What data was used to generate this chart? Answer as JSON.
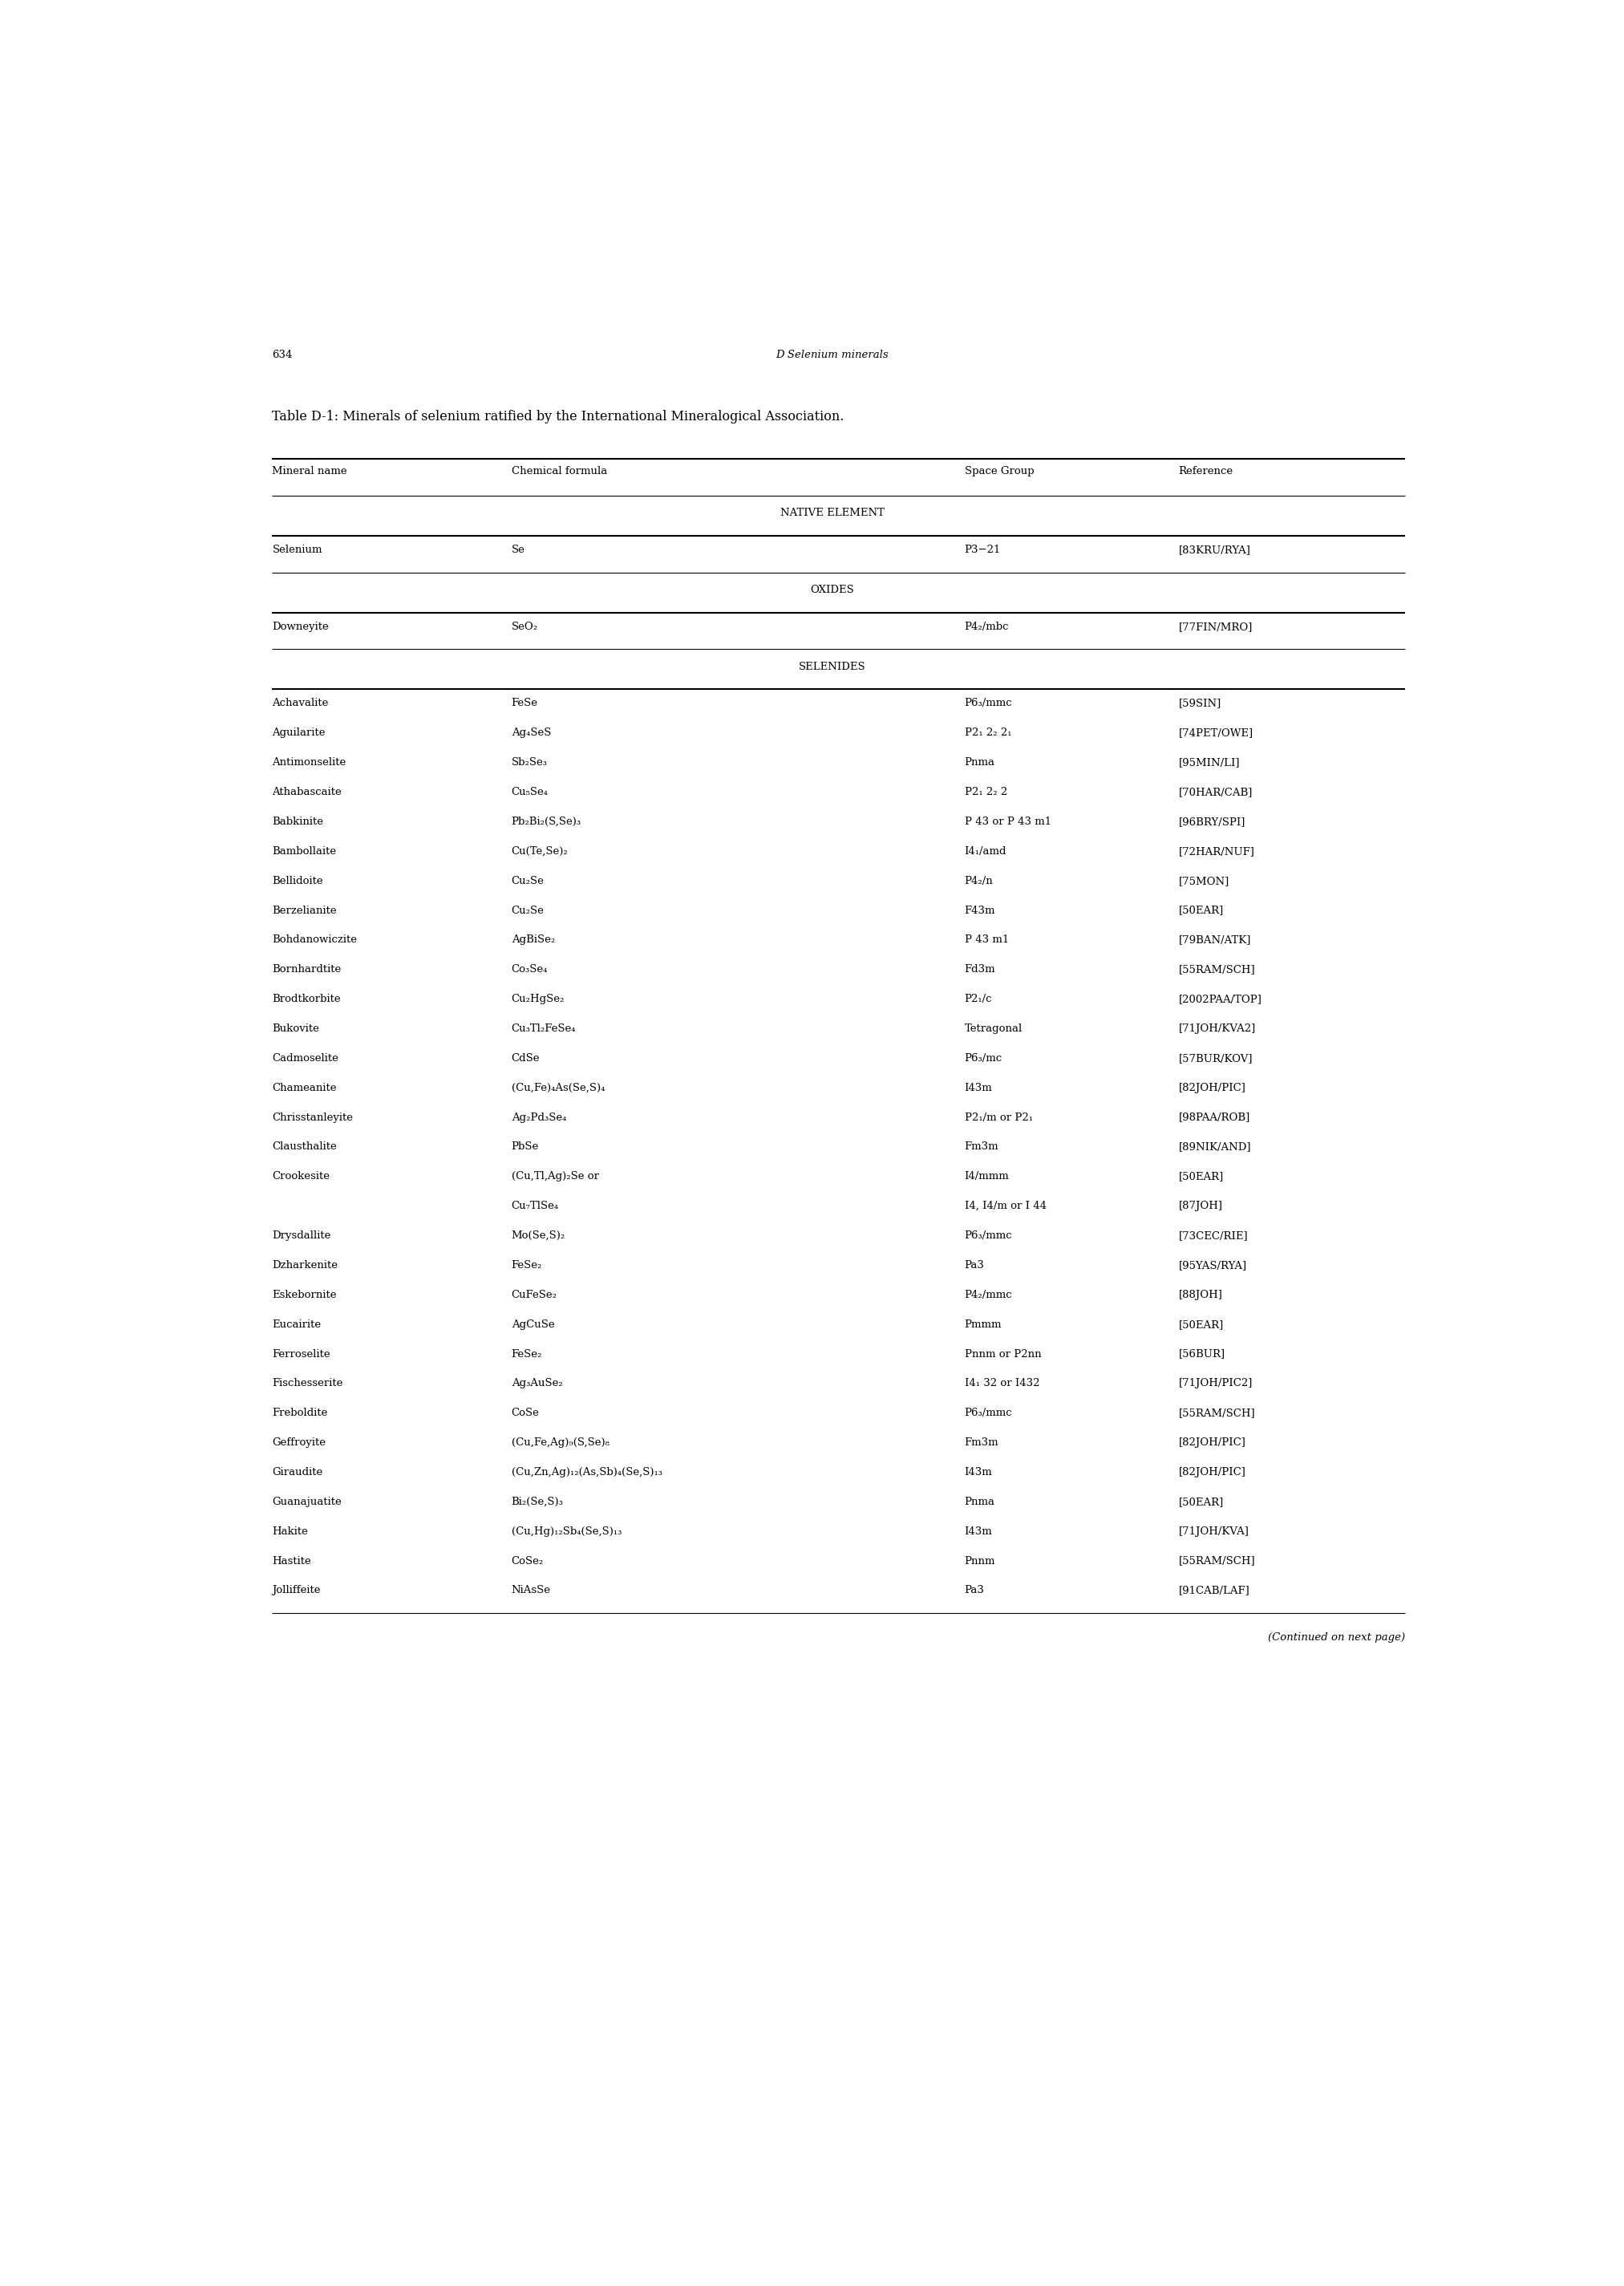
{
  "page_number": "634",
  "page_header": "D Selenium minerals",
  "table_title": "Table D-1: Minerals of selenium ratified by the International Mineralogical Association.",
  "col_headers": [
    "Mineral name",
    "Chemical formula",
    "Space Group",
    "Reference"
  ],
  "sections": [
    {
      "section_name": "NATIVE ELEMENT",
      "rows": [
        [
          "Selenium",
          "Se",
          "P3−21",
          "[83KRU/RYA]"
        ]
      ]
    },
    {
      "section_name": "OXIDES",
      "rows": [
        [
          "Downeyite",
          "SeO₂",
          "P4₂/mbc",
          "[77FIN/MRO]"
        ]
      ]
    },
    {
      "section_name": "SELENIDES",
      "rows": [
        [
          "Achavalite",
          "FeSe",
          "P6₃/mmc",
          "[59SIN]"
        ],
        [
          "Aguilarite",
          "Ag₄SeS",
          "P2₁ 2₂ 2₁",
          "[74PET/OWE]"
        ],
        [
          "Antimonselite",
          "Sb₂Se₃",
          "Pnma",
          "[95MIN/LI]"
        ],
        [
          "Athabascaite",
          "Cu₅Se₄",
          "P2₁ 2₂ 2",
          "[70HAR/CAB]"
        ],
        [
          "Babkinite",
          "Pb₂Bi₂(S,Se)₃",
          "P 43 or P 43 m1",
          "[96BRY/SPI]"
        ],
        [
          "Bambollaite",
          "Cu(Te,Se)₂",
          "I4₁/amd",
          "[72HAR/NUF]"
        ],
        [
          "Bellidoite",
          "Cu₂Se",
          "P4₂/n",
          "[75MON]"
        ],
        [
          "Berzelianite",
          "Cu₂Se",
          "F43m",
          "[50EAR]"
        ],
        [
          "Bohdanowiczite",
          "AgBiSe₂",
          "P 43 m1",
          "[79BAN/ATK]"
        ],
        [
          "Bornhardtite",
          "Co₃Se₄",
          "Fd3m",
          "[55RAM/SCH]"
        ],
        [
          "Brodtkorbite",
          "Cu₂HgSe₂",
          "P2₁/c",
          "[2002PAA/TOP]"
        ],
        [
          "Bukovite",
          "Cu₃Tl₂FeSe₄",
          "Tetragonal",
          "[71JOH/KVA2]"
        ],
        [
          "Cadmoselite",
          "CdSe",
          "P6₃/mc",
          "[57BUR/KOV]"
        ],
        [
          "Chameanite",
          "(Cu,Fe)₄As(Se,S)₄",
          "I43m",
          "[82JOH/PIC]"
        ],
        [
          "Chrisstanleyite",
          "Ag₂Pd₃Se₄",
          "P2₁/m or P2₁",
          "[98PAA/ROB]"
        ],
        [
          "Clausthalite",
          "PbSe",
          "Fm3m",
          "[89NIK/AND]"
        ],
        [
          "Crookesite",
          "(Cu,Tl,Ag)₂Se or",
          "I4/mmm",
          "[50EAR]"
        ],
        [
          "",
          "Cu₇TlSe₄",
          "I4, I4/m or I 44",
          "[87JOH]"
        ],
        [
          "Drysdallite",
          "Mo(Se,S)₂",
          "P6₃/mmc",
          "[73CEC/RIE]"
        ],
        [
          "Dzharkenite",
          "FeSe₂",
          "Pa3",
          "[95YAS/RYA]"
        ],
        [
          "Eskebornite",
          "CuFeSe₂",
          "P4₂/mmc",
          "[88JOH]"
        ],
        [
          "Eucairite",
          "AgCuSe",
          "Pmmm",
          "[50EAR]"
        ],
        [
          "Ferroselite",
          "FeSe₂",
          "Pnnm or P2nn",
          "[56BUR]"
        ],
        [
          "Fischesserite",
          "Ag₃AuSe₂",
          "I4₁ 32 or I432",
          "[71JOH/PIC2]"
        ],
        [
          "Freboldite",
          "CoSe",
          "P6₃/mmc",
          "[55RAM/SCH]"
        ],
        [
          "Geffroyite",
          "(Cu,Fe,Ag)₉(S,Se)₈",
          "Fm3m",
          "[82JOH/PIC]"
        ],
        [
          "Giraudite",
          "(Cu,Zn,Ag)₁₂(As,Sb)₄(Se,S)₁₃",
          "I43m",
          "[82JOH/PIC]"
        ],
        [
          "Guanajuatite",
          "Bi₂(Se,S)₃",
          "Pnma",
          "[50EAR]"
        ],
        [
          "Hakite",
          "(Cu,Hg)₁₂Sb₄(Se,S)₁₃",
          "I43m",
          "[71JOH/KVA]"
        ],
        [
          "Hastite",
          "CoSe₂",
          "Pnnm",
          "[55RAM/SCH]"
        ],
        [
          "Jolliffeite",
          "NiAsSe",
          "Pa3",
          "[91CAB/LAF]"
        ]
      ]
    }
  ],
  "footer_note": "(Continued on next page)",
  "bg_color": "#ffffff",
  "text_color": "#000000",
  "font_size": 9.5,
  "header_font_size": 9.5,
  "title_font_size": 11.5
}
